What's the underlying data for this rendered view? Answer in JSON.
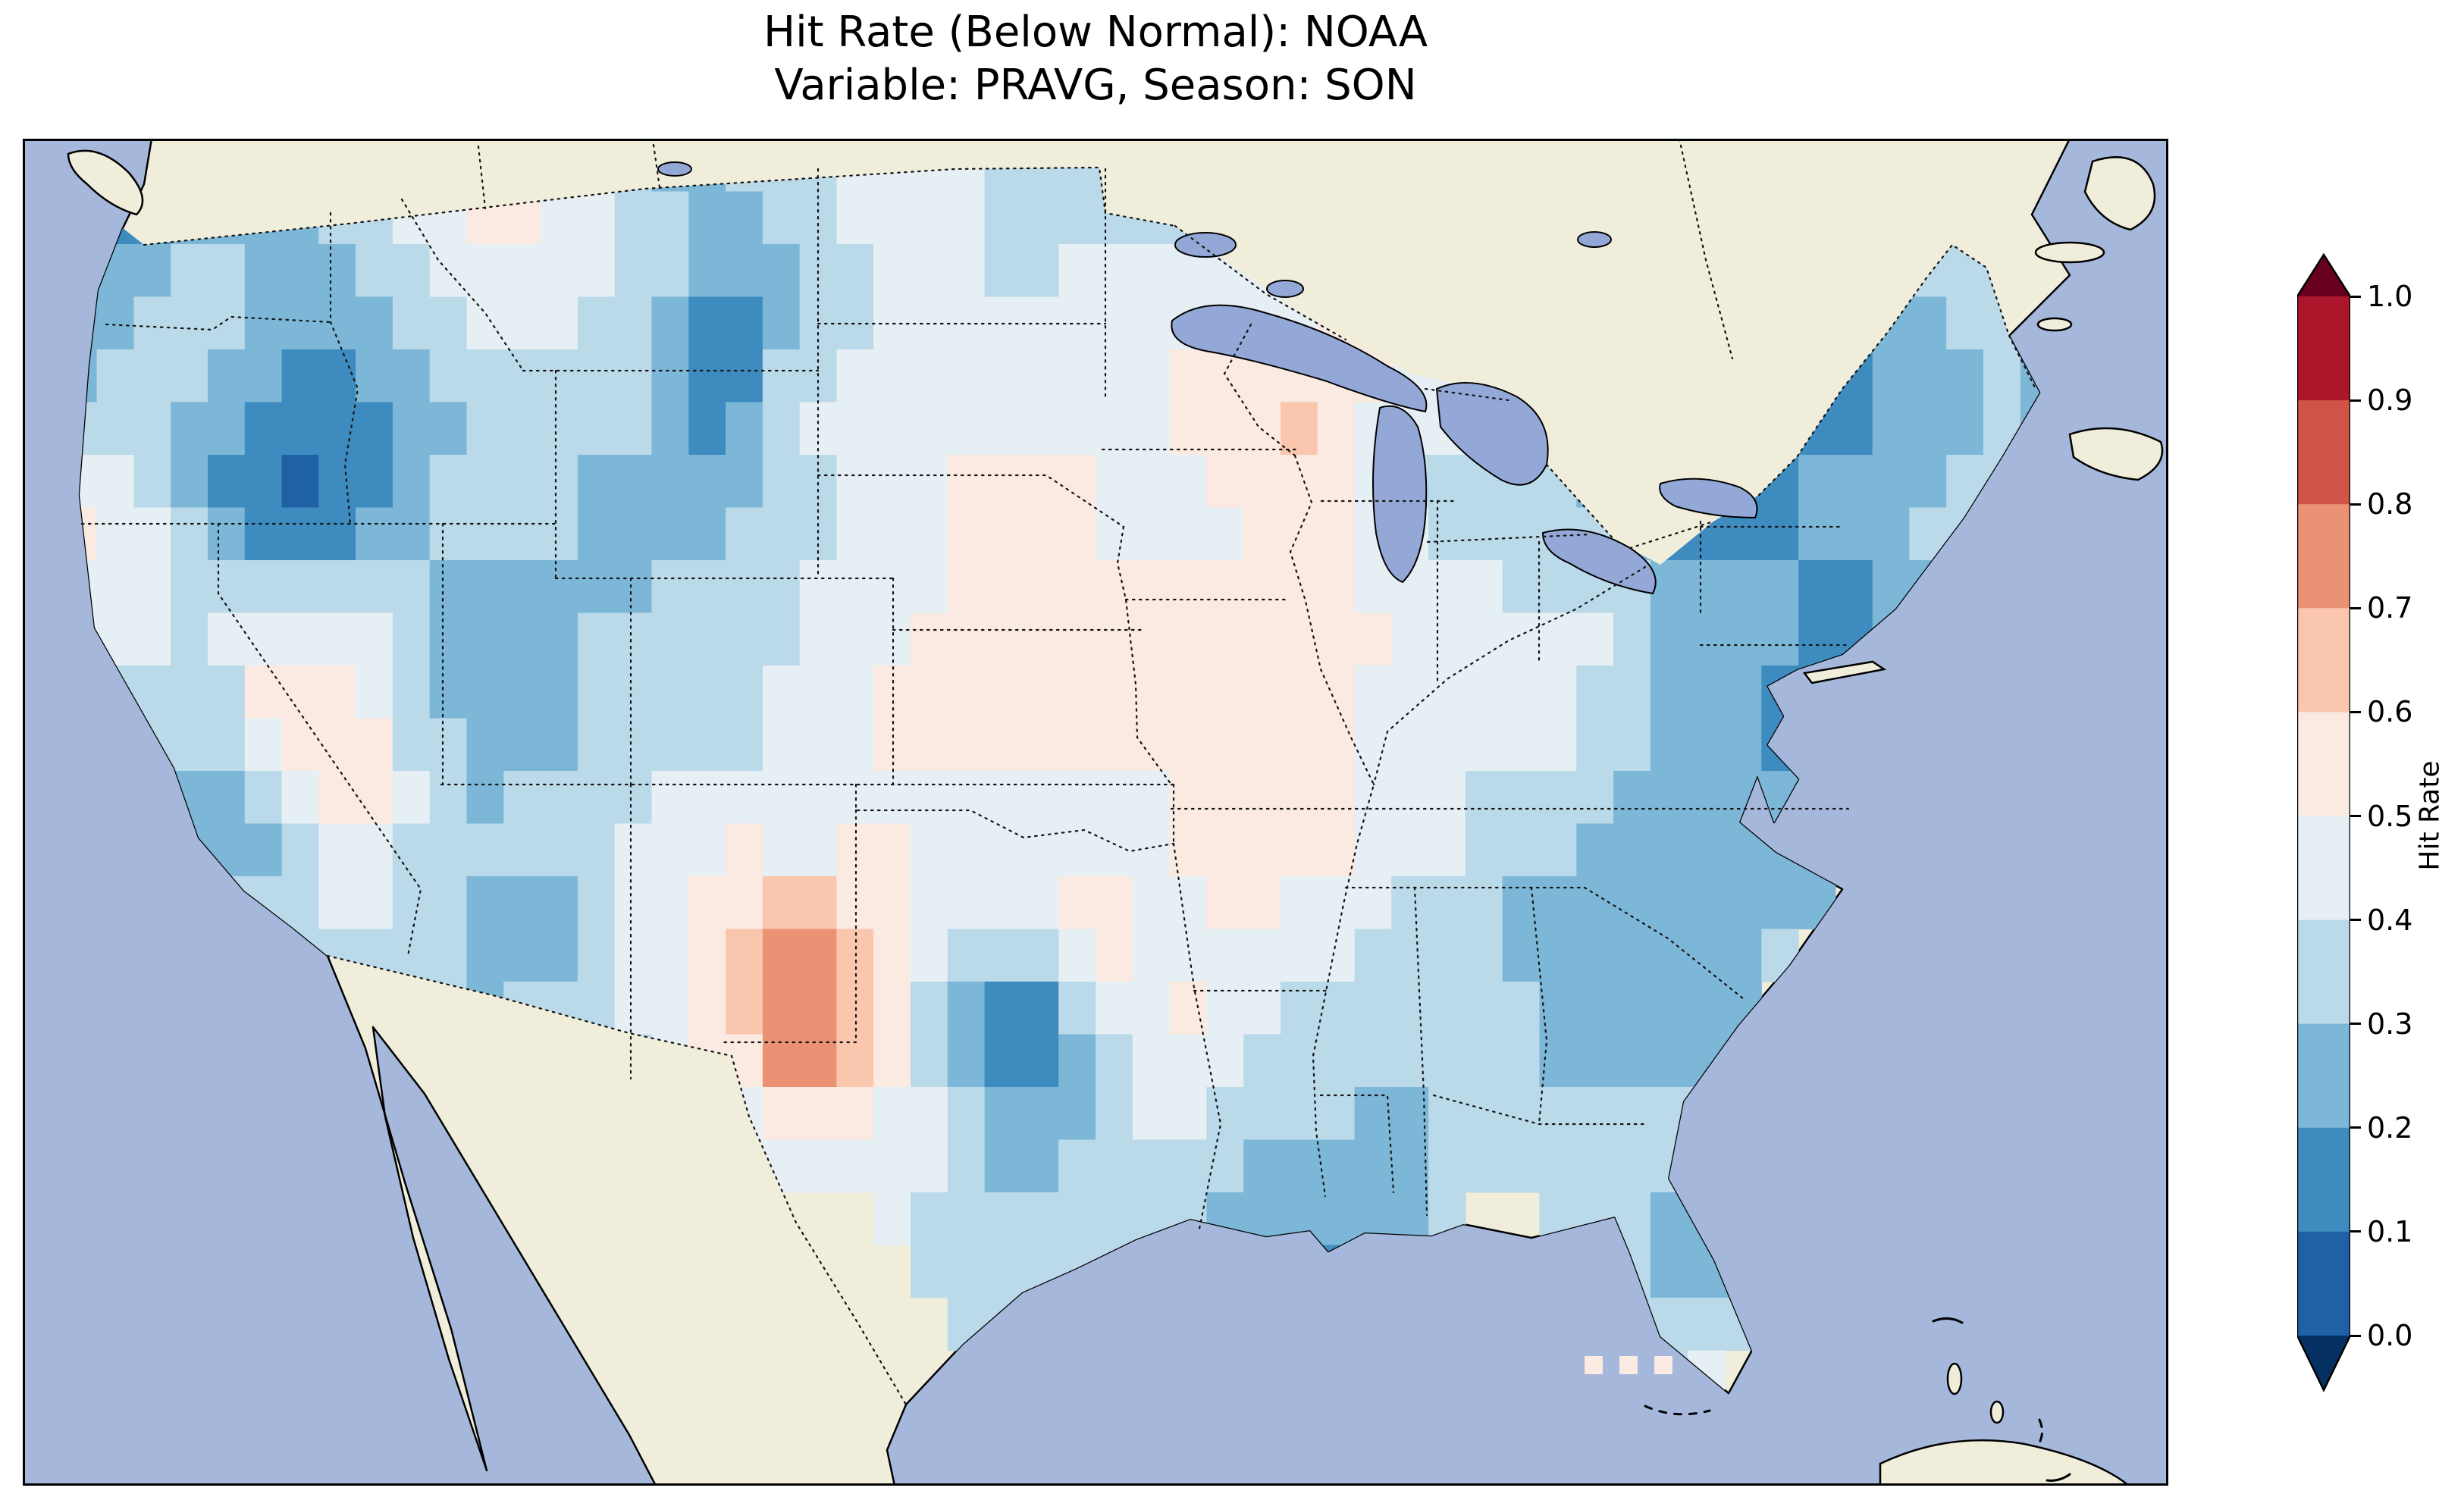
{
  "title": {
    "line1": "Hit Rate (Below Normal): NOAA",
    "line2": "Variable: PRAVG, Season: SON"
  },
  "chart_data": {
    "type": "heatmap",
    "title": "Hit Rate (Below Normal): NOAA",
    "subtitle": "Variable: PRAVG, Season: SON",
    "metric": "Hit Rate (Below Normal)",
    "dataset": "NOAA",
    "variable": "PRAVG",
    "season": "SON",
    "map_region": "Contiguous United States",
    "colorbar": {
      "label": "Hit Rate",
      "tick_labels": [
        "0.0",
        "0.1",
        "0.2",
        "0.3",
        "0.4",
        "0.5",
        "0.6",
        "0.7",
        "0.8",
        "0.9",
        "1.0"
      ],
      "vmin": 0.0,
      "vmax": 1.0,
      "boundaries": [
        0.0,
        0.1,
        0.2,
        0.3,
        0.4,
        0.5,
        0.6,
        0.7,
        0.8,
        0.9,
        1.0
      ],
      "band_colors": [
        "#1e61a5",
        "#3d8bbf",
        "#7cb7d7",
        "#bad9e9",
        "#e6eff4",
        "#faeae1",
        "#fac7ae",
        "#ec9274",
        "#cf5347",
        "#ab162a"
      ],
      "under_color": "#053061",
      "over_color": "#67001f",
      "extend": "both"
    },
    "base_map_colors": {
      "ocean": "#a6b7dc",
      "land": "#f0eedb",
      "lakes": "#93a8d6",
      "coastline": "#000000"
    },
    "grid": {
      "comment": "Hit-rate values estimated from the figure on a 2-degree grid over CONUS; null = no data (ocean / outside US)",
      "lon_west": -125,
      "lon_east": -67,
      "lat_north": 49,
      "lat_south": 25,
      "dlon": 2,
      "dlat": 2,
      "cols": 29,
      "rows": 12,
      "values": [
        [
          0.05,
          0.1,
          0.25,
          0.25,
          0.35,
          0.5,
          0.55,
          0.45,
          0.3,
          0.3,
          0.35,
          0.5,
          0.45,
          0.3,
          0.35,
          0.3,
          0.35,
          0.4,
          0.45,
          null,
          null,
          null,
          null,
          null,
          null,
          null,
          null,
          0.25,
          0.3
        ],
        [
          0.2,
          0.3,
          0.35,
          0.3,
          0.25,
          0.35,
          0.5,
          0.45,
          0.35,
          0.15,
          0.3,
          0.4,
          0.45,
          0.4,
          0.45,
          0.5,
          0.45,
          0.45,
          0.55,
          0.5,
          0.45,
          null,
          0.3,
          0.25,
          0.2,
          0.3,
          0.35,
          0.3,
          0.25
        ],
        [
          0.25,
          0.35,
          0.3,
          0.15,
          0.15,
          0.25,
          0.35,
          0.3,
          0.35,
          0.1,
          0.4,
          0.45,
          0.5,
          0.45,
          0.5,
          0.5,
          0.6,
          0.65,
          0.45,
          0.4,
          0.35,
          0.3,
          0.2,
          0.1,
          0.15,
          0.2,
          0.3,
          0.25,
          null
        ],
        [
          0.55,
          0.45,
          0.2,
          0.05,
          0.15,
          0.3,
          0.35,
          0.3,
          0.25,
          0.3,
          0.35,
          0.45,
          0.5,
          0.55,
          0.5,
          0.45,
          0.5,
          0.55,
          0.4,
          0.35,
          0.3,
          0.25,
          0.1,
          0.15,
          0.25,
          0.3,
          0.35,
          null,
          null
        ],
        [
          0.5,
          0.45,
          0.4,
          0.45,
          0.4,
          0.3,
          0.25,
          0.3,
          0.3,
          0.35,
          0.4,
          0.45,
          0.5,
          0.55,
          0.5,
          0.55,
          0.5,
          0.55,
          0.5,
          0.45,
          0.4,
          0.45,
          0.25,
          0.3,
          0.1,
          0.25,
          null,
          null,
          null
        ],
        [
          null,
          0.35,
          0.3,
          0.6,
          0.6,
          0.3,
          0.25,
          0.3,
          0.35,
          0.3,
          0.45,
          0.5,
          0.55,
          0.5,
          0.6,
          0.5,
          0.55,
          0.5,
          0.45,
          0.4,
          0.45,
          0.35,
          0.25,
          0.15,
          0.1,
          null,
          null,
          null,
          null
        ],
        [
          null,
          0.3,
          0.25,
          0.3,
          0.6,
          0.35,
          0.3,
          0.35,
          0.4,
          0.5,
          0.4,
          0.5,
          0.45,
          0.5,
          0.45,
          0.5,
          0.55,
          0.6,
          0.45,
          0.4,
          0.35,
          0.3,
          0.25,
          0.3,
          0.2,
          null,
          null,
          null,
          null
        ],
        [
          null,
          null,
          0.3,
          0.35,
          0.4,
          0.3,
          0.25,
          0.3,
          0.5,
          0.55,
          0.75,
          0.6,
          0.45,
          0.4,
          0.6,
          0.45,
          0.5,
          0.45,
          0.4,
          0.35,
          0.25,
          0.2,
          0.25,
          0.3,
          null,
          null,
          null,
          null,
          null
        ],
        [
          null,
          null,
          null,
          null,
          null,
          0.35,
          0.3,
          0.35,
          0.4,
          0.6,
          0.85,
          0.6,
          0.25,
          0.05,
          0.3,
          0.55,
          0.4,
          0.35,
          0.3,
          0.35,
          0.3,
          0.2,
          0.3,
          null,
          null,
          null,
          null,
          null,
          null
        ],
        [
          null,
          null,
          null,
          null,
          null,
          null,
          null,
          null,
          null,
          0.4,
          0.45,
          0.5,
          0.45,
          0.2,
          0.35,
          0.4,
          0.3,
          0.3,
          0.25,
          0.35,
          0.35,
          0.35,
          0.3,
          0.3,
          null,
          null,
          null,
          null,
          null
        ],
        [
          null,
          null,
          null,
          null,
          null,
          null,
          null,
          null,
          null,
          null,
          null,
          null,
          0.35,
          0.4,
          0.3,
          null,
          0.25,
          0.15,
          0.3,
          null,
          null,
          0.3,
          0.25,
          0.3,
          null,
          null,
          null,
          null,
          null
        ],
        [
          null,
          null,
          null,
          null,
          null,
          null,
          null,
          null,
          null,
          null,
          null,
          null,
          null,
          0.35,
          null,
          null,
          null,
          null,
          null,
          null,
          null,
          0.35,
          0.4,
          null,
          null,
          null,
          null,
          null,
          null
        ]
      ]
    },
    "keys_cells_value": 0.55
  }
}
